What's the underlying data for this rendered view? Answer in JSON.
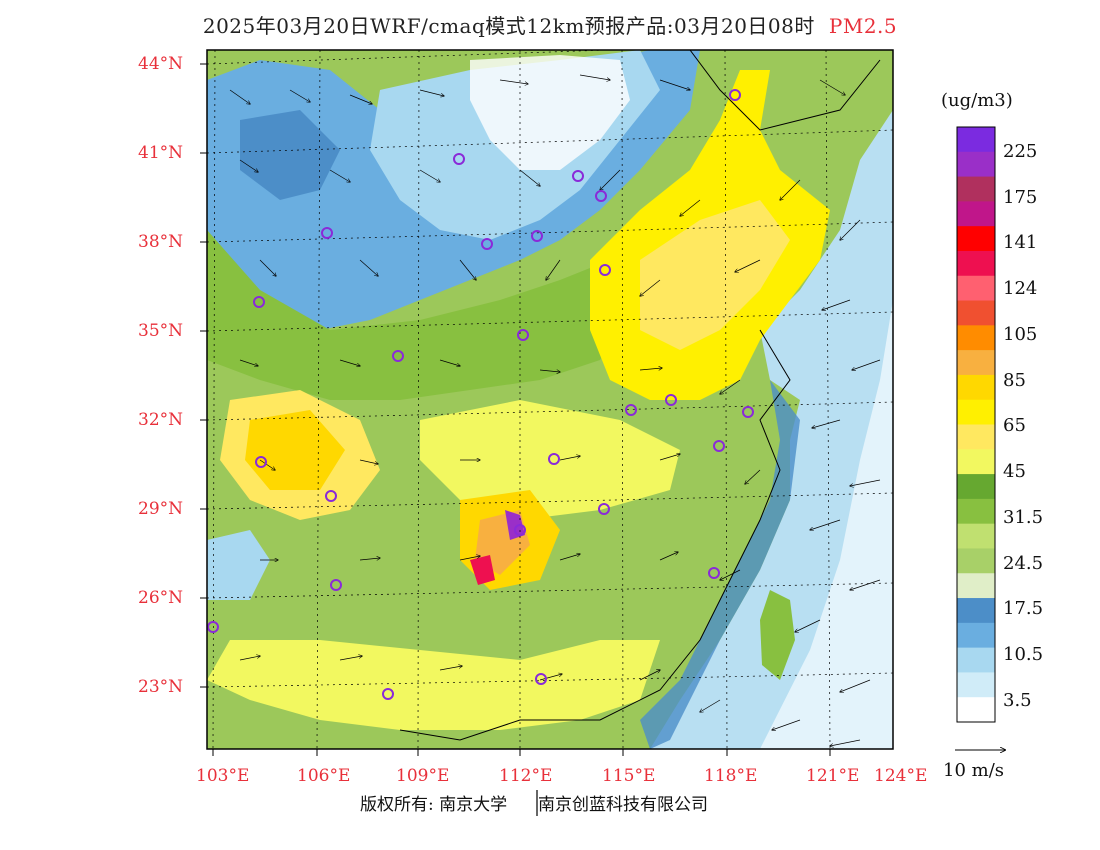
{
  "title": {
    "text": "2025年03月20日WRF/cmaq模式12km预报产品:03月20日08时",
    "pollutant": "PM2.5"
  },
  "map": {
    "lat_labels": [
      "44°N",
      "41°N",
      "38°N",
      "35°N",
      "32°N",
      "29°N",
      "26°N",
      "23°N"
    ],
    "lon_labels": [
      "103°E",
      "106°E",
      "109°E",
      "112°E",
      "115°E",
      "118°E",
      "121°E",
      "124°E"
    ],
    "label_color": "#e8303a"
  },
  "colorbar": {
    "unit": "(ug/m3)",
    "labels": [
      "225",
      "175",
      "141",
      "124",
      "105",
      "85",
      "65",
      "45",
      "31.5",
      "24.5",
      "17.5",
      "10.5",
      "3.5"
    ],
    "colors": [
      "#7b2be0",
      "#9a2fc8",
      "#b0305e",
      "#c0168a",
      "#ff0000",
      "#ee1050",
      "#ff6070",
      "#f05030",
      "#ff8c00",
      "#f8b040",
      "#ffd800",
      "#fff000",
      "#ffe860",
      "#f2f860",
      "#66a830",
      "#88c040",
      "#c0e070",
      "#a8d068",
      "#e0eec8",
      "#4c8ec8",
      "#6aaee0",
      "#a8d8f0",
      "#d0ecf8",
      "#ffffff"
    ]
  },
  "wind_scale_label": "10 m/s",
  "copyright": {
    "left": "版权所有: 南京大学",
    "right": "南京创蓝科技有限公司"
  }
}
